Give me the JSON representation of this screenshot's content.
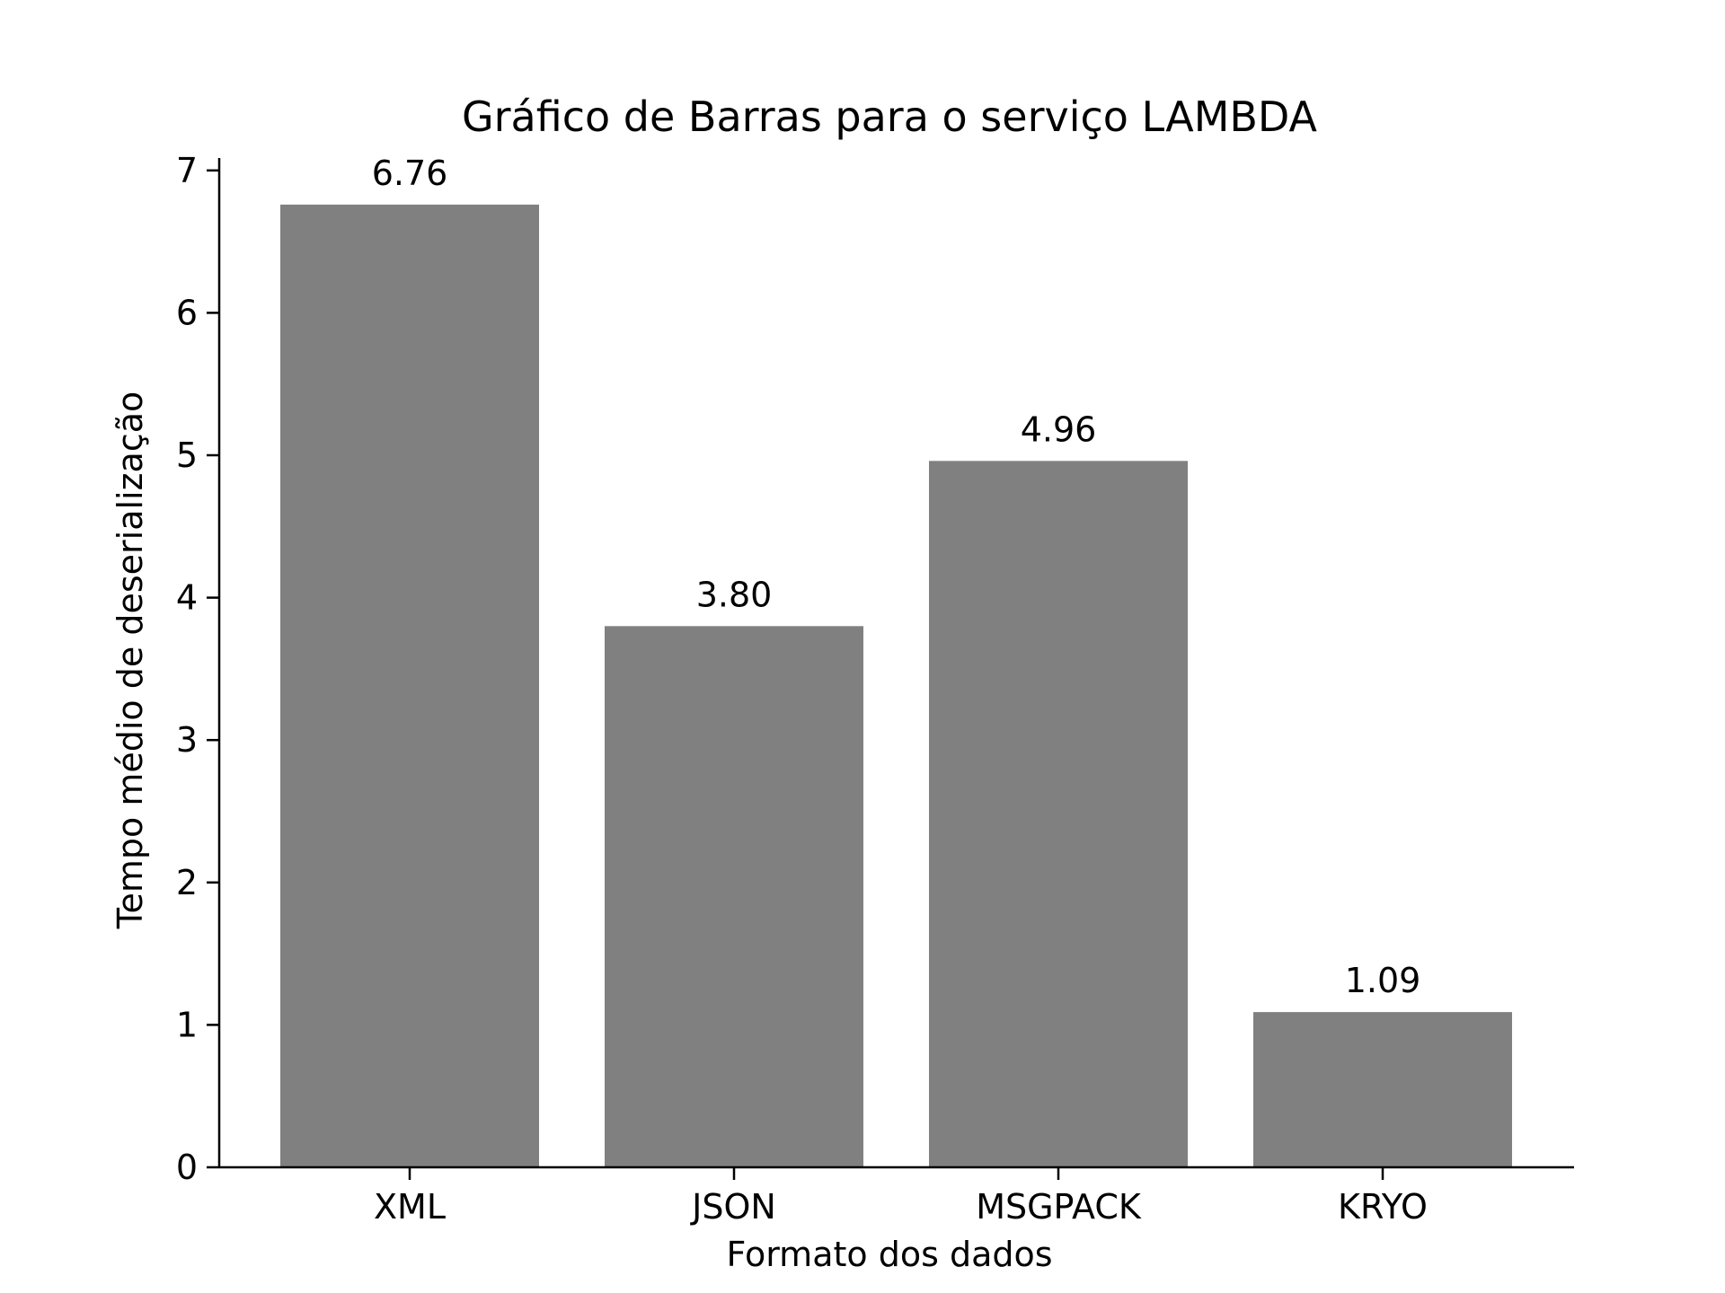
{
  "chart_data": {
    "type": "bar",
    "title": "Gráfico de Barras para o serviço LAMBDA",
    "xlabel": "Formato dos dados",
    "ylabel": "Tempo médio de deserialização",
    "categories": [
      "XML",
      "JSON",
      "MSGPACK",
      "KRYO"
    ],
    "values": [
      6.76,
      3.8,
      4.96,
      1.09
    ],
    "data_labels": [
      "6.76",
      "3.80",
      "4.96",
      "1.09"
    ],
    "y_ticks": [
      0,
      1,
      2,
      3,
      4,
      5,
      6,
      7
    ],
    "y_tick_labels": [
      "0",
      "1",
      "2",
      "3",
      "4",
      "5",
      "6",
      "7"
    ],
    "ylim": [
      0,
      7.1
    ],
    "bar_color": "#808080",
    "grid": false,
    "legend": "none"
  }
}
